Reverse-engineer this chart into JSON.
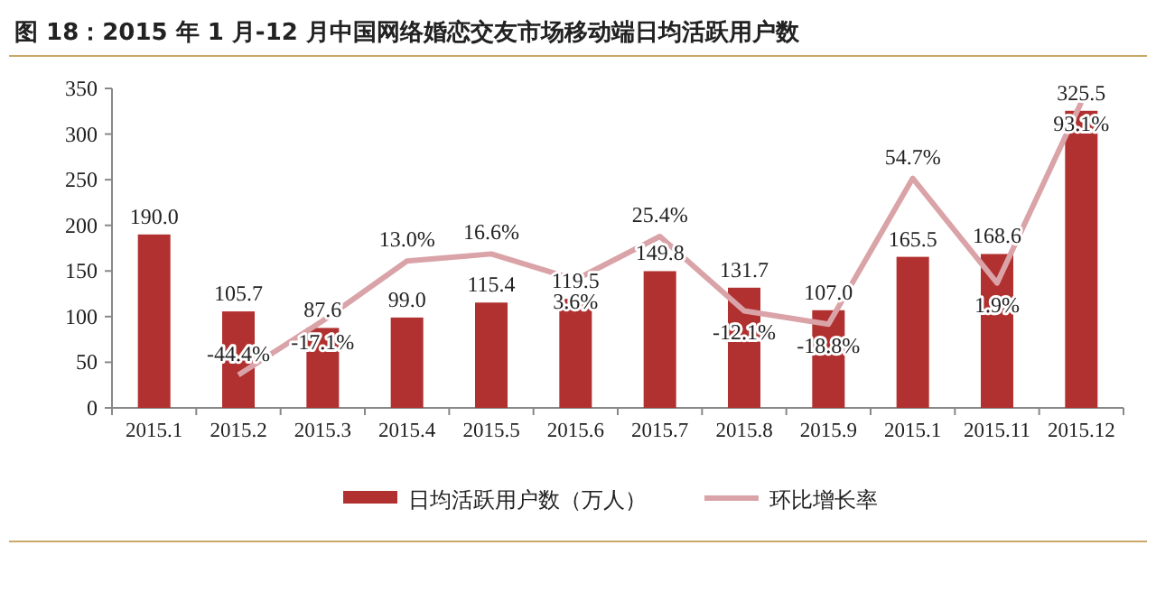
{
  "chart_data": {
    "type": "bar",
    "title": "图 18：2015 年 1 月-12 月中国网络婚恋交友市场移动端日均活跃用户数",
    "categories": [
      "2015.1",
      "2015.2",
      "2015.3",
      "2015.4",
      "2015.5",
      "2015.6",
      "2015.7",
      "2015.8",
      "2015.9",
      "2015.1",
      "2015.11",
      "2015.12"
    ],
    "series": [
      {
        "name": "日均活跃用户数（万人）",
        "color": "#b0312f",
        "values": [
          190.0,
          105.7,
          87.6,
          99.0,
          115.4,
          119.5,
          149.8,
          131.7,
          107.0,
          165.5,
          168.6,
          325.5
        ],
        "value_labels": [
          "190.0",
          "105.7",
          "87.6",
          "99.0",
          "115.4",
          "119.5",
          "149.8",
          "131.7",
          "107.0",
          "165.5",
          "168.6",
          "325.5"
        ]
      },
      {
        "name": "环比增长率",
        "type": "line",
        "axis": "y2",
        "color": "#d9a3a8",
        "values": [
          null,
          -44.4,
          -17.1,
          13.0,
          16.6,
          3.6,
          25.4,
          -12.1,
          -18.8,
          54.7,
          1.9,
          93.1
        ],
        "value_labels": [
          null,
          "-44.4%",
          "-17.1%",
          "13.0%",
          "16.6%",
          "3.6%",
          "25.4%",
          "-12.1%",
          "-18.8%",
          "54.7%",
          "1.9%",
          "93.1%"
        ]
      }
    ],
    "ylim": [
      0,
      350
    ],
    "yticks": [
      0,
      50,
      100,
      150,
      200,
      250,
      300,
      350
    ],
    "y2lim": [
      -61,
      100
    ],
    "legend": "bottom",
    "grid": false
  }
}
